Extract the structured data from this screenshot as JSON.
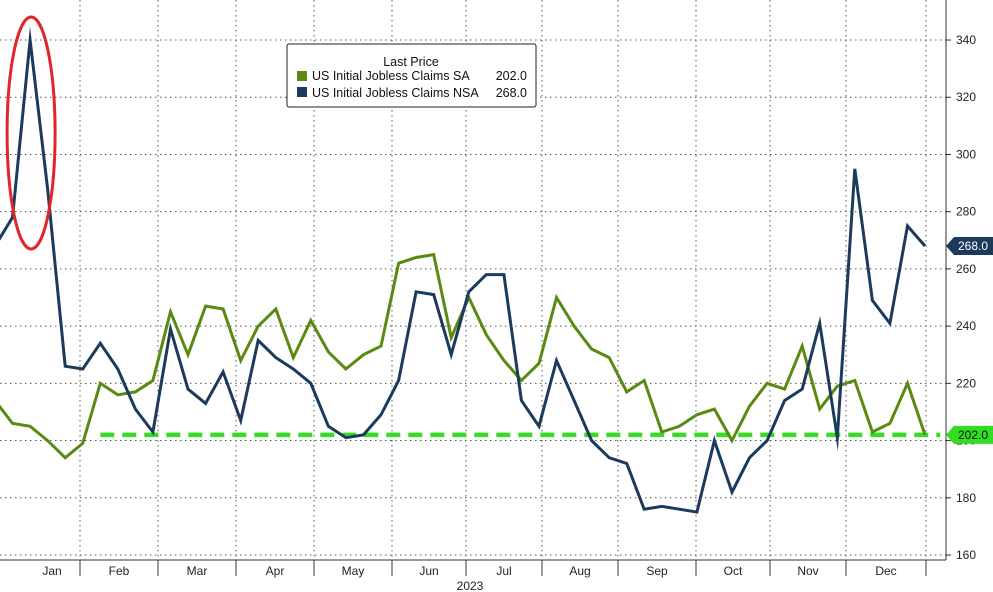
{
  "chart_data": {
    "type": "line",
    "legend": {
      "title": "Last Price",
      "entries": [
        {
          "label": "US Initial Jobless Claims SA",
          "value": "202.0",
          "color": "#5a8a12"
        },
        {
          "label": "US Initial Jobless Claims NSA",
          "value": "268.0",
          "color": "#1b3a5c"
        }
      ],
      "placement": "top-center"
    },
    "x_ticks": [
      "Jan",
      "Feb",
      "Mar",
      "Apr",
      "May",
      "Jun",
      "Jul",
      "Aug",
      "Sep",
      "Oct",
      "Nov",
      "Dec"
    ],
    "x_year_label": "2023",
    "y_ticks": [
      160,
      180,
      200,
      220,
      240,
      260,
      280,
      300,
      320,
      340
    ],
    "ylim": [
      155,
      350
    ],
    "grid": true,
    "series": [
      {
        "name": "US Initial Jobless Claims SA",
        "color": "#5a8a12",
        "values": [
          214,
          206,
          205,
          200,
          194,
          199,
          220,
          216,
          217,
          221,
          245,
          230,
          247,
          246,
          228,
          240,
          246,
          229,
          242,
          231,
          225,
          230,
          233,
          262,
          264,
          265,
          236,
          250,
          237,
          228,
          221,
          227,
          250,
          240,
          232,
          229,
          217,
          221,
          203,
          205,
          209,
          211,
          200,
          212,
          220,
          218,
          233,
          211,
          219,
          221,
          203,
          206,
          220,
          202
        ]
      },
      {
        "name": "US Initial Jobless Claims NSA",
        "color": "#1b3a5c",
        "values": [
          268,
          278,
          340,
          288,
          226,
          225,
          234,
          225,
          211,
          203,
          239,
          218,
          213,
          224,
          207,
          235,
          229,
          225,
          220,
          205,
          201,
          202,
          209,
          221,
          252,
          251,
          230,
          252,
          258,
          258,
          214,
          205,
          228,
          214,
          200,
          194,
          192,
          176,
          177,
          176,
          175,
          200,
          182,
          194,
          200,
          214,
          218,
          241,
          201,
          295,
          249,
          241,
          275,
          268
        ]
      }
    ],
    "reference_line": {
      "value": 202,
      "color": "#33dd22"
    },
    "last_value_badges": [
      {
        "text": "268.0",
        "value": 268,
        "color": "#1b3a5c"
      },
      {
        "text": "202.0",
        "value": 202,
        "color": "#33dd22"
      }
    ],
    "annotation": {
      "type": "ellipse",
      "color": "#e0262b",
      "target_index": 2
    }
  }
}
